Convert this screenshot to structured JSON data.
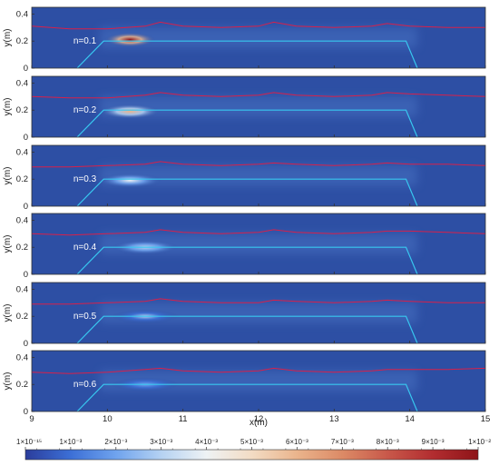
{
  "chart_data": {
    "type": "heatmap",
    "xlabel": "x(m)",
    "ylabel": "y(m)",
    "xlim": [
      9,
      15
    ],
    "ylim": [
      0,
      0.45
    ],
    "x_ticks": [
      "9",
      "10",
      "11",
      "12",
      "13",
      "14",
      "15"
    ],
    "y_ticks": [
      "0",
      "0.2",
      "0.4"
    ],
    "structure_outline": {
      "color": "#38c8f0",
      "x": [
        9.6,
        9.95,
        13.95,
        14.1
      ],
      "y": [
        0,
        0.2,
        0.2,
        0
      ]
    },
    "free_surface_color": "#d8204a",
    "panels": [
      {
        "label": "n=0.1",
        "free_surface": {
          "x": [
            9,
            9.5,
            10,
            10.5,
            10.7,
            11,
            11.5,
            12,
            12.2,
            12.5,
            13,
            13.5,
            13.7,
            14,
            14.5,
            15
          ],
          "y": [
            0.31,
            0.29,
            0.29,
            0.31,
            0.34,
            0.31,
            0.3,
            0.31,
            0.34,
            0.31,
            0.3,
            0.31,
            0.33,
            0.31,
            0.3,
            0.3
          ]
        },
        "hotspot": {
          "x": 10.3,
          "y": 0.21,
          "peak": 0.01
        }
      },
      {
        "label": "n=0.2",
        "free_surface": {
          "x": [
            9,
            9.5,
            10,
            10.5,
            10.7,
            11,
            11.5,
            12,
            12.2,
            12.5,
            13,
            13.5,
            13.7,
            14,
            14.5,
            15
          ],
          "y": [
            0.3,
            0.29,
            0.29,
            0.31,
            0.33,
            0.31,
            0.3,
            0.31,
            0.33,
            0.31,
            0.3,
            0.31,
            0.33,
            0.32,
            0.31,
            0.3
          ]
        },
        "hotspot": {
          "x": 10.3,
          "y": 0.19,
          "peak": 0.006
        }
      },
      {
        "label": "n=0.3",
        "free_surface": {
          "x": [
            9,
            9.5,
            10,
            10.5,
            10.7,
            11,
            11.5,
            12,
            12.2,
            12.5,
            13,
            13.5,
            13.7,
            14,
            14.5,
            15
          ],
          "y": [
            0.29,
            0.29,
            0.3,
            0.31,
            0.33,
            0.31,
            0.3,
            0.31,
            0.32,
            0.31,
            0.3,
            0.31,
            0.32,
            0.31,
            0.31,
            0.3
          ]
        },
        "hotspot": {
          "x": 10.3,
          "y": 0.19,
          "peak": 0.004
        }
      },
      {
        "label": "n=0.4",
        "free_surface": {
          "x": [
            9,
            9.5,
            10,
            10.5,
            10.7,
            11,
            11.5,
            12,
            12.2,
            12.5,
            13,
            13.5,
            13.7,
            14,
            14.5,
            15
          ],
          "y": [
            0.3,
            0.29,
            0.3,
            0.31,
            0.33,
            0.31,
            0.3,
            0.31,
            0.33,
            0.31,
            0.3,
            0.31,
            0.32,
            0.32,
            0.31,
            0.3
          ]
        },
        "hotspot": {
          "x": 10.5,
          "y": 0.2,
          "peak": 0.003
        }
      },
      {
        "label": "n=0.5",
        "free_surface": {
          "x": [
            9,
            9.5,
            10,
            10.5,
            10.7,
            11,
            11.5,
            12,
            12.2,
            12.5,
            13,
            13.5,
            13.7,
            14,
            14.5,
            15
          ],
          "y": [
            0.29,
            0.29,
            0.3,
            0.31,
            0.33,
            0.31,
            0.3,
            0.3,
            0.32,
            0.31,
            0.3,
            0.31,
            0.32,
            0.31,
            0.3,
            0.3
          ]
        },
        "hotspot": {
          "x": 10.5,
          "y": 0.2,
          "peak": 0.0025
        }
      },
      {
        "label": "n=0.6",
        "free_surface": {
          "x": [
            9,
            9.5,
            10,
            10.5,
            10.7,
            11,
            11.5,
            12,
            12.2,
            12.5,
            13,
            13.5,
            13.7,
            14,
            14.5,
            15
          ],
          "y": [
            0.29,
            0.28,
            0.29,
            0.31,
            0.32,
            0.3,
            0.29,
            0.3,
            0.32,
            0.3,
            0.29,
            0.3,
            0.31,
            0.31,
            0.31,
            0.32
          ]
        },
        "hotspot": {
          "x": 10.5,
          "y": 0.2,
          "peak": 0.002
        }
      }
    ],
    "colorbar": {
      "labels": [
        "1×10⁻¹⁵",
        "1×10⁻³",
        "2×10⁻³",
        "3×10⁻³",
        "4×10⁻³",
        "5×10⁻³",
        "6×10⁻³",
        "7×10⁻³",
        "8×10⁻³",
        "9×10⁻³",
        "1×10⁻²"
      ],
      "values": [
        1e-15,
        0.001,
        0.002,
        0.003,
        0.004,
        0.005,
        0.006,
        0.007,
        0.008,
        0.009,
        0.01
      ],
      "colors": [
        "#2b3d9c",
        "#3c6fd6",
        "#6fa3ee",
        "#b5d2f2",
        "#eef2f4",
        "#f3dcc4",
        "#eab48c",
        "#dc8a66",
        "#c8584a",
        "#b22d30",
        "#8e1418"
      ]
    },
    "colors": {
      "field_background": "#2d4fa4"
    }
  }
}
